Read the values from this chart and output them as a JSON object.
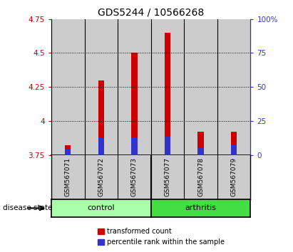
{
  "title": "GDS5244 / 10566268",
  "samples": [
    "GSM567071",
    "GSM567072",
    "GSM567073",
    "GSM567077",
    "GSM567078",
    "GSM567079"
  ],
  "groups": [
    "control",
    "control",
    "control",
    "arthritis",
    "arthritis",
    "arthritis"
  ],
  "red_tops": [
    3.82,
    4.3,
    4.5,
    4.65,
    3.92,
    3.92
  ],
  "blue_tops": [
    3.793,
    3.875,
    3.875,
    3.882,
    3.8,
    3.822
  ],
  "baseline": 3.75,
  "ylim_left": [
    3.75,
    4.75
  ],
  "ylim_right": [
    0,
    100
  ],
  "yticks_left": [
    3.75,
    4.0,
    4.25,
    4.5,
    4.75
  ],
  "ytick_labels_left": [
    "3.75",
    "4",
    "4.25",
    "4.5",
    "4.75"
  ],
  "yticks_right": [
    0,
    25,
    50,
    75,
    100
  ],
  "ytick_labels_right": [
    "0",
    "25",
    "50",
    "75",
    "100%"
  ],
  "grid_yticks": [
    4.0,
    4.25,
    4.5
  ],
  "red_color": "#CC0000",
  "blue_color": "#3333CC",
  "control_color": "#AAFFAA",
  "arthritis_color": "#44DD44",
  "bar_bg_color": "#CCCCCC",
  "bar_width": 0.82,
  "title_fontsize": 10,
  "xlabel": "disease state",
  "legend_items": [
    "transformed count",
    "percentile rank within the sample"
  ]
}
